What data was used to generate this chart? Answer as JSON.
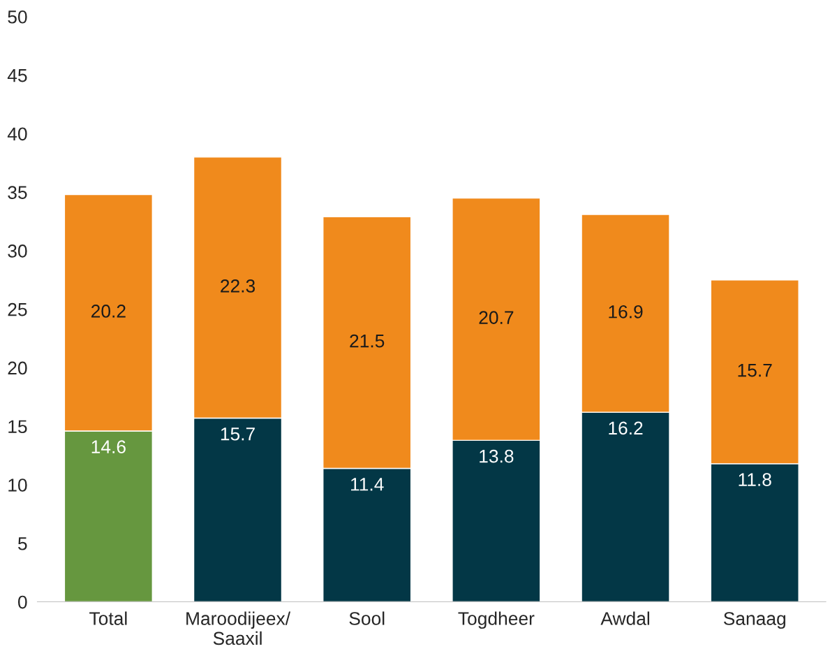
{
  "chart_data": {
    "type": "bar",
    "stacked": true,
    "data_labels": true,
    "categories": [
      "Total",
      "Maroodijeex/\nSaaxil",
      "Sool",
      "Togdheer",
      "Awdal",
      "Sanaag"
    ],
    "series": [
      {
        "colors": [
          "#66973f",
          "#033746",
          "#033746",
          "#033746",
          "#033746",
          "#033746"
        ],
        "values": [
          14.6,
          15.7,
          11.4,
          13.8,
          16.2,
          11.8
        ]
      },
      {
        "color": "#f08a1c",
        "values": [
          20.2,
          22.3,
          21.5,
          20.7,
          16.9,
          15.7
        ]
      }
    ],
    "ylim": [
      0,
      50
    ],
    "yticks": [
      0,
      5,
      10,
      15,
      20,
      25,
      30,
      35,
      40,
      45,
      50
    ],
    "grid": false,
    "legend": false
  }
}
